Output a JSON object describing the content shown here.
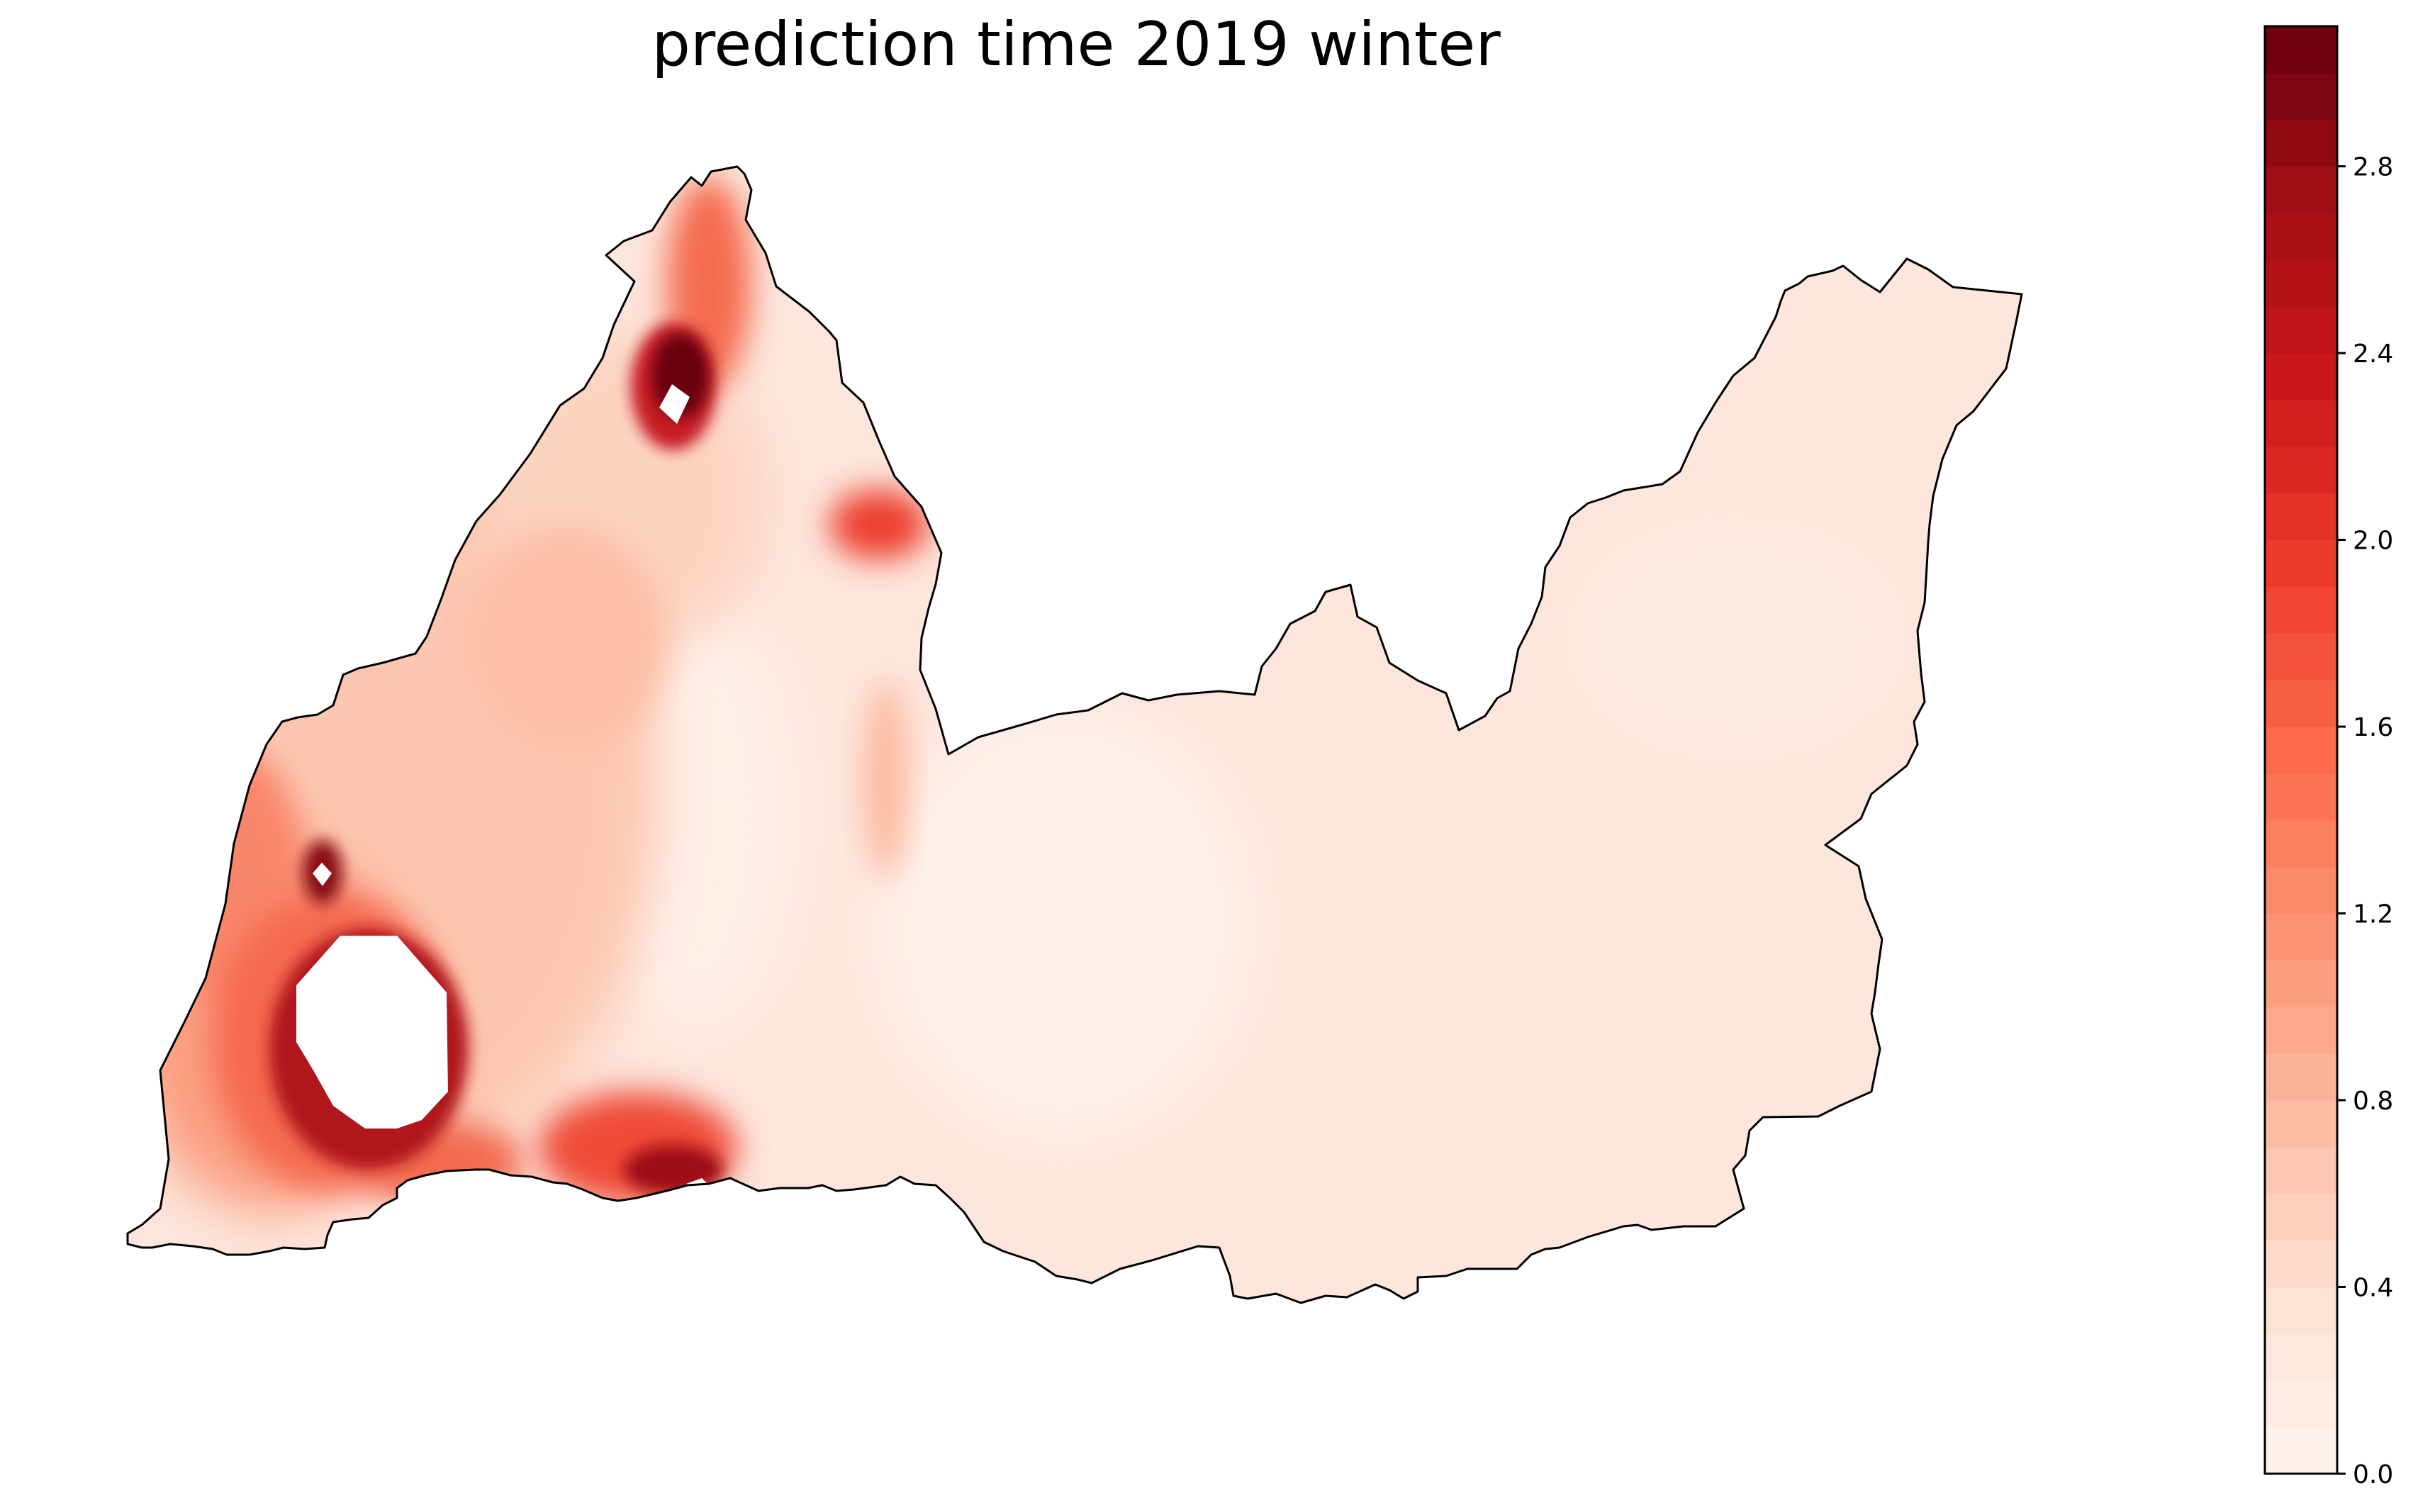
{
  "title": "prediction time 2019 winter",
  "colorbar": {
    "colormap": "Reds",
    "min": 0.0,
    "max": 3.1,
    "levels": 31,
    "ticks": [
      "0.0",
      "0.4",
      "0.8",
      "1.2",
      "1.6",
      "2.0",
      "2.4",
      "2.8"
    ],
    "tick_values": [
      0.0,
      0.4,
      0.8,
      1.2,
      1.6,
      2.0,
      2.4,
      2.8
    ]
  },
  "colors": {
    "low": "#fff5f0",
    "base": "#fde6dc",
    "mid": "#fcbba1",
    "high": "#ef3b2c",
    "max": "#67000d",
    "outline": "#000000"
  }
}
